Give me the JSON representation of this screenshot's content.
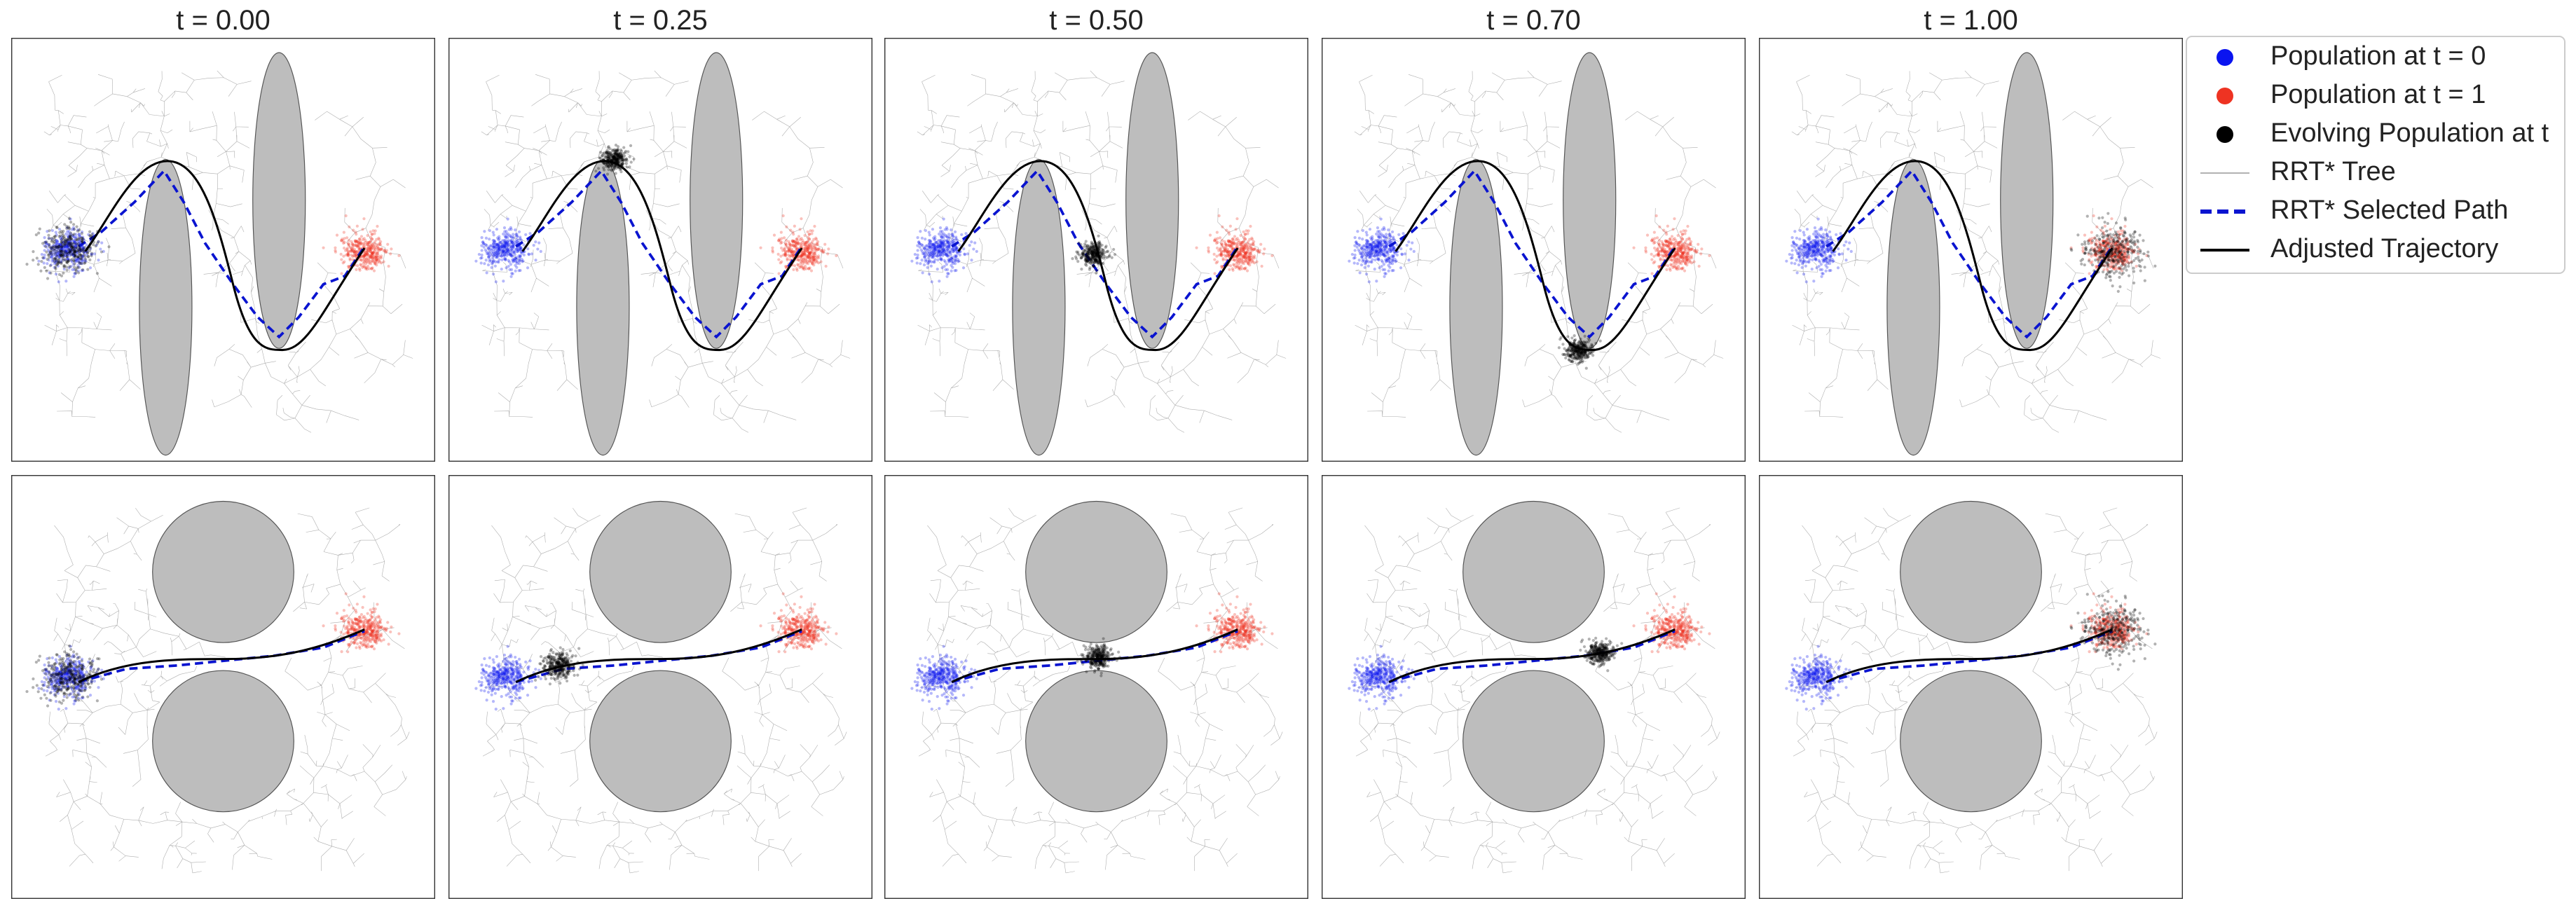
{
  "panels": [
    {
      "title": "t = 0.00"
    },
    {
      "title": "t = 0.25"
    },
    {
      "title": "t = 0.50"
    },
    {
      "title": "t = 0.70"
    },
    {
      "title": "t = 1.00"
    }
  ],
  "legend": {
    "items": [
      {
        "label": "Population at t = 0",
        "color": "#0a14f0"
      },
      {
        "label": "Population at t = 1",
        "color": "#ee3322"
      },
      {
        "label": "Evolving Population at t",
        "color": "#000000"
      },
      {
        "label": "RRT* Tree",
        "color": "#999999"
      },
      {
        "label": "RRT* Selected Path",
        "color": "#0a14d0"
      },
      {
        "label": "Adjusted Trajectory",
        "color": "#000000"
      }
    ]
  }
}
